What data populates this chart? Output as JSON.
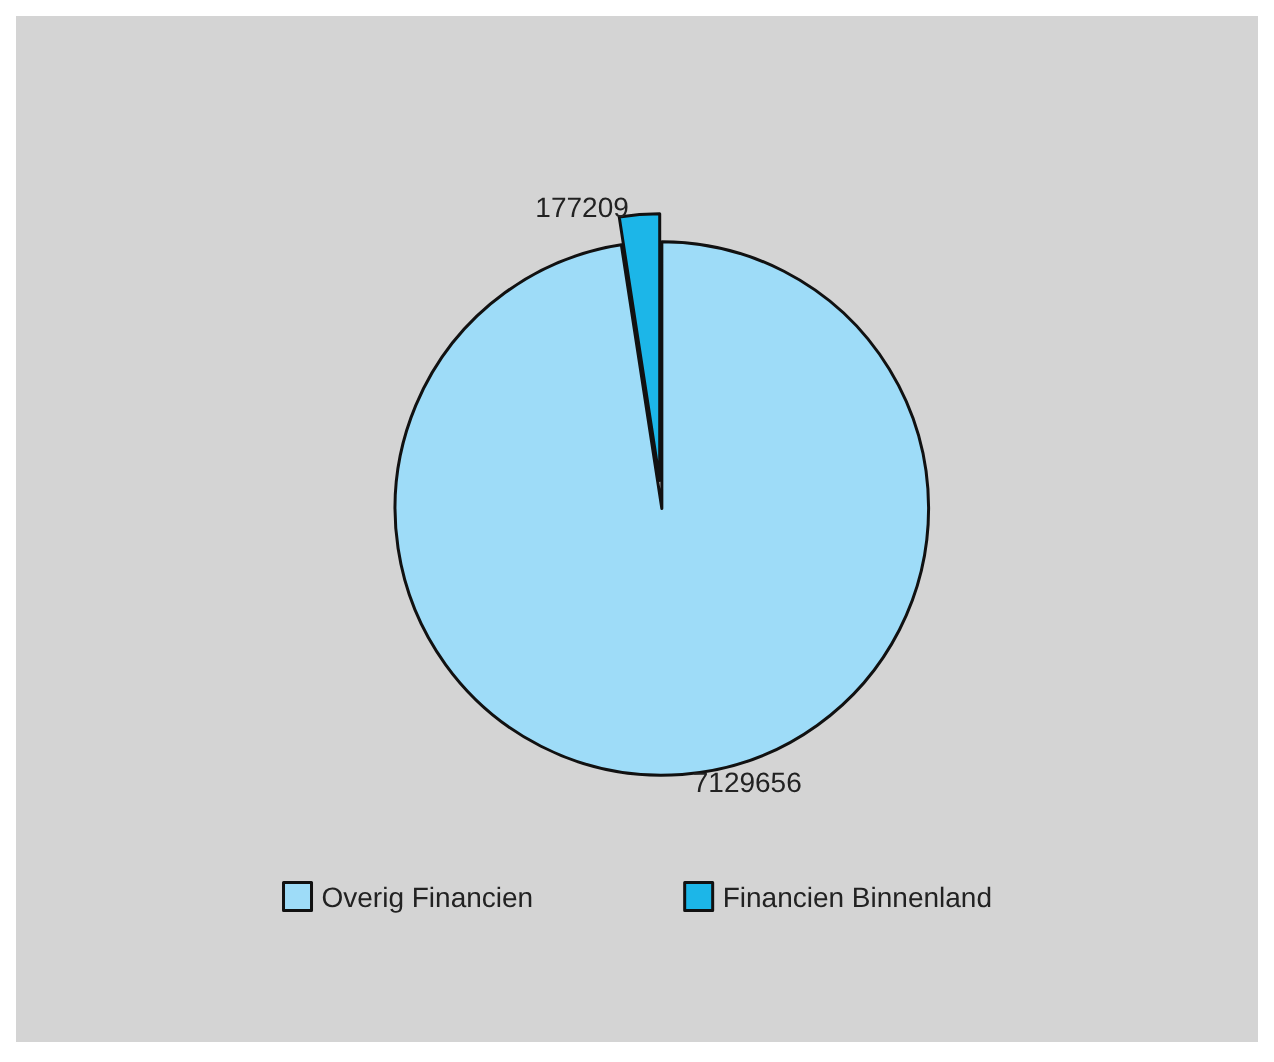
{
  "chart_data": {
    "type": "pie",
    "categories": [
      "Overig Financien",
      "Financien Binnenland"
    ],
    "values": [
      7129656,
      177209
    ],
    "colors": [
      "#9edcf8",
      "#1cb6e8"
    ],
    "data_labels": true,
    "legend": "bottom"
  }
}
